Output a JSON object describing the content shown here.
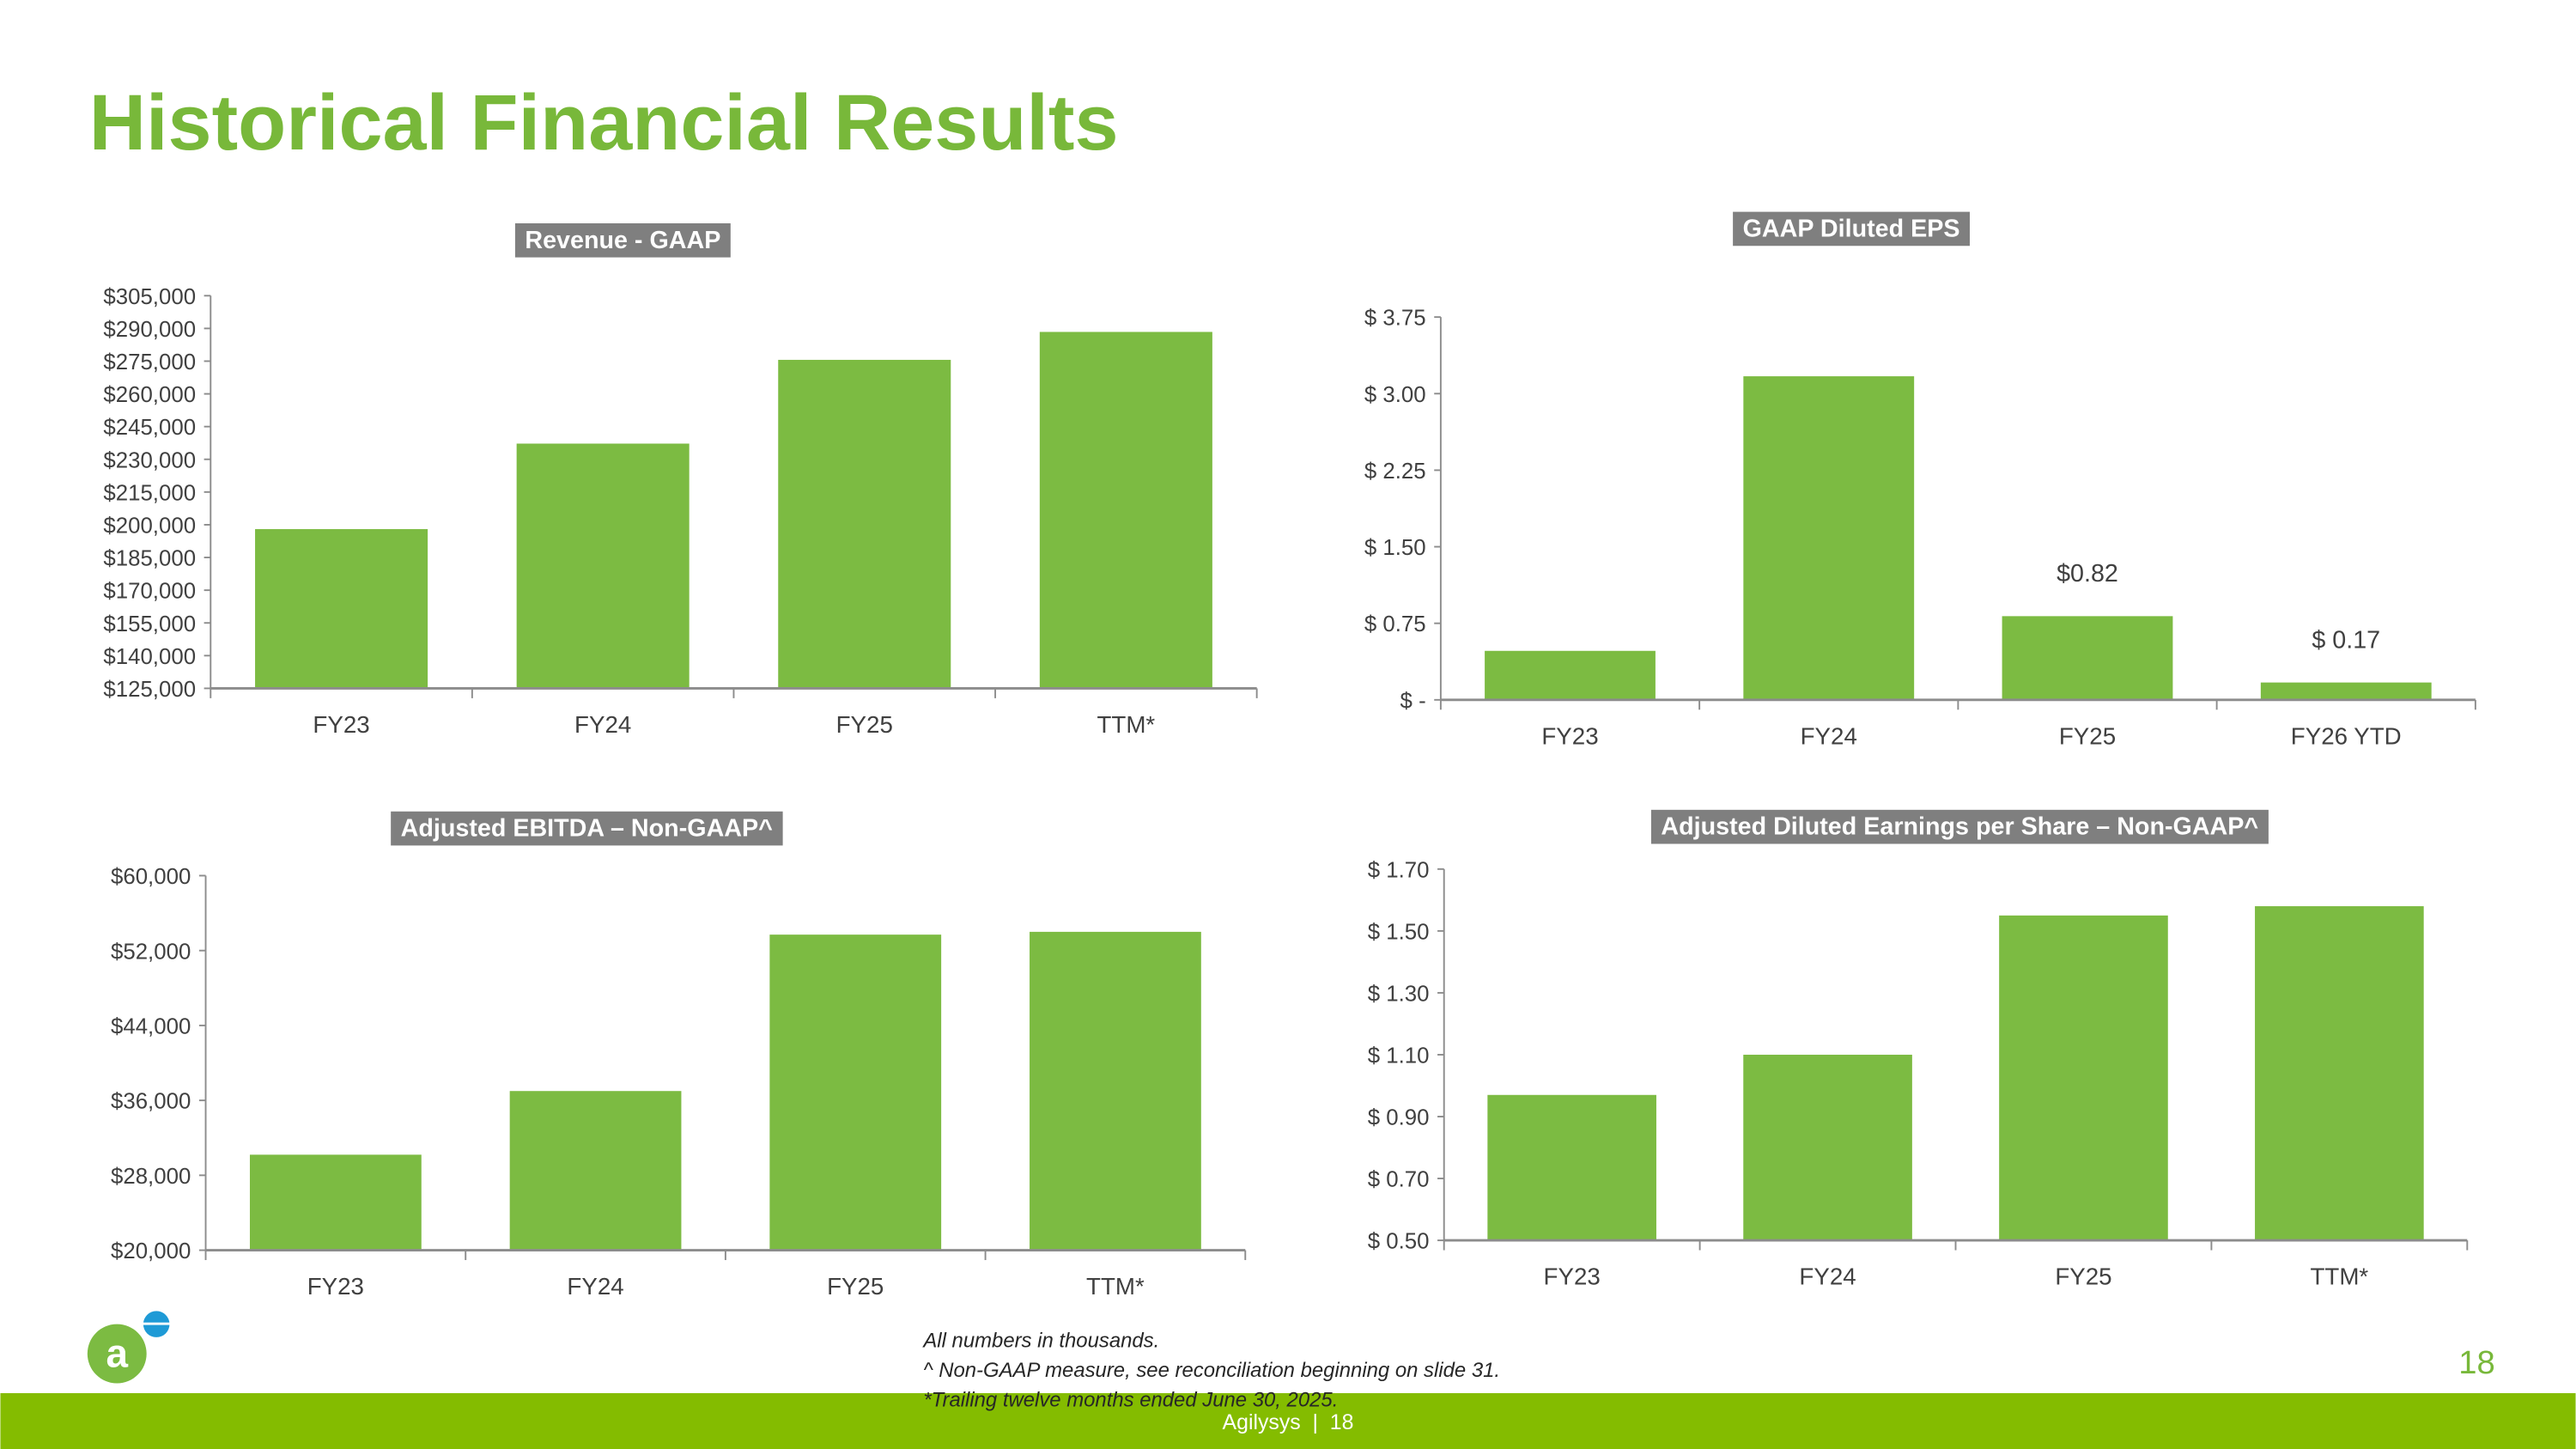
{
  "title": "Historical Financial Results",
  "colors": {
    "title": "#78b83a",
    "bar": "#7cbb42",
    "badge": "#7f7f7f",
    "footer": "#84bc00",
    "axis": "#8c8c8c"
  },
  "chart_data": [
    {
      "type": "bar",
      "title": "Revenue - GAAP",
      "categories": [
        "FY23",
        "FY24",
        "FY25",
        "TTM*"
      ],
      "values": [
        198000,
        237200,
        275600,
        288400
      ],
      "ylim": [
        125000,
        305000
      ],
      "yticks": [
        125000,
        140000,
        155000,
        170000,
        185000,
        200000,
        215000,
        230000,
        245000,
        260000,
        275000,
        290000,
        305000
      ],
      "ytick_labels": [
        "$125,000",
        "$140,000",
        "$155,000",
        "$170,000",
        "$185,000",
        "$200,000",
        "$215,000",
        "$230,000",
        "$245,000",
        "$260,000",
        "$275,000",
        "$290,000",
        "$305,000"
      ],
      "data_labels": [
        null,
        null,
        null,
        null
      ],
      "grid": false
    },
    {
      "type": "bar",
      "title": "GAAP Diluted EPS",
      "categories": [
        "FY23",
        "FY24",
        "FY25",
        "FY26 YTD"
      ],
      "values": [
        0.48,
        3.17,
        0.82,
        0.17
      ],
      "ylim": [
        0,
        3.75
      ],
      "yticks": [
        0,
        0.75,
        1.5,
        2.25,
        3.0,
        3.75
      ],
      "ytick_labels": [
        "$ -",
        "$ 0.75",
        "$ 1.50",
        "$ 2.25",
        "$ 3.00",
        "$ 3.75"
      ],
      "data_labels": [
        null,
        null,
        "$0.82",
        "$ 0.17"
      ],
      "grid": false
    },
    {
      "type": "bar",
      "title": "Adjusted EBITDA – Non-GAAP^",
      "categories": [
        "FY23",
        "FY24",
        "FY25",
        "TTM*"
      ],
      "values": [
        30200,
        37000,
        53700,
        54000
      ],
      "ylim": [
        20000,
        60000
      ],
      "yticks": [
        20000,
        28000,
        36000,
        44000,
        52000,
        60000
      ],
      "ytick_labels": [
        "$20,000",
        "$28,000",
        "$36,000",
        "$44,000",
        "$52,000",
        "$60,000"
      ],
      "data_labels": [
        null,
        null,
        null,
        null
      ],
      "grid": false
    },
    {
      "type": "bar",
      "title": "Adjusted Diluted Earnings per Share – Non-GAAP^",
      "categories": [
        "FY23",
        "FY24",
        "FY25",
        "TTM*"
      ],
      "values": [
        0.97,
        1.1,
        1.55,
        1.58
      ],
      "ylim": [
        0.5,
        1.7
      ],
      "yticks": [
        0.5,
        0.7,
        0.9,
        1.1,
        1.3,
        1.5,
        1.7
      ],
      "ytick_labels": [
        "$ 0.50",
        "$ 0.70",
        "$ 0.90",
        "$ 1.10",
        "$ 1.30",
        "$ 1.50",
        "$ 1.70"
      ],
      "data_labels": [
        null,
        null,
        null,
        null
      ],
      "grid": false
    }
  ],
  "notes": [
    "All numbers in thousands.",
    "^ Non-GAAP measure, see reconciliation beginning on slide 31.",
    "*Trailing twelve months ended June 30, 2025."
  ],
  "page_number": "18",
  "footer_text": "Agilysys  |  18",
  "logo_text": "a"
}
